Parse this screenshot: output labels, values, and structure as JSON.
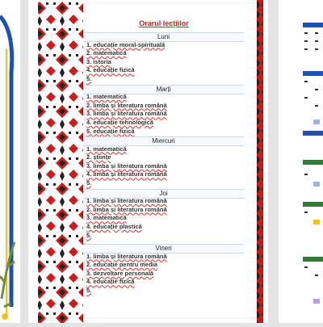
{
  "document": {
    "title": "Orarul lecțiilor",
    "days": [
      {
        "name": "Luni",
        "lessons": [
          "1. educație moral-spirituală",
          "2. matematică",
          "3. istoria",
          "4. educație fizică",
          "5."
        ]
      },
      {
        "name": "Marți",
        "lessons": [
          "1. matematică",
          "2. limba și literatura română",
          "3. limba și literatura română",
          "4. educație tehnologică",
          "5. educație fizică"
        ]
      },
      {
        "name": "Miercuri",
        "lessons": [
          "1. matematică",
          "2. științe",
          "3. limba și literatura română",
          "4. limba și literatura română",
          "5."
        ]
      },
      {
        "name": "Joi",
        "lessons": [
          "1. limba și literatura română",
          "2. limba și literatura română",
          "3. matematică",
          "4. educație plastică",
          "5."
        ]
      },
      {
        "name": "Vineri",
        "lessons": [
          "1. limba și literatura română",
          "2. educație pentru media",
          "3. dezvoltare personală",
          "4. educație fizică",
          "5."
        ]
      }
    ]
  }
}
